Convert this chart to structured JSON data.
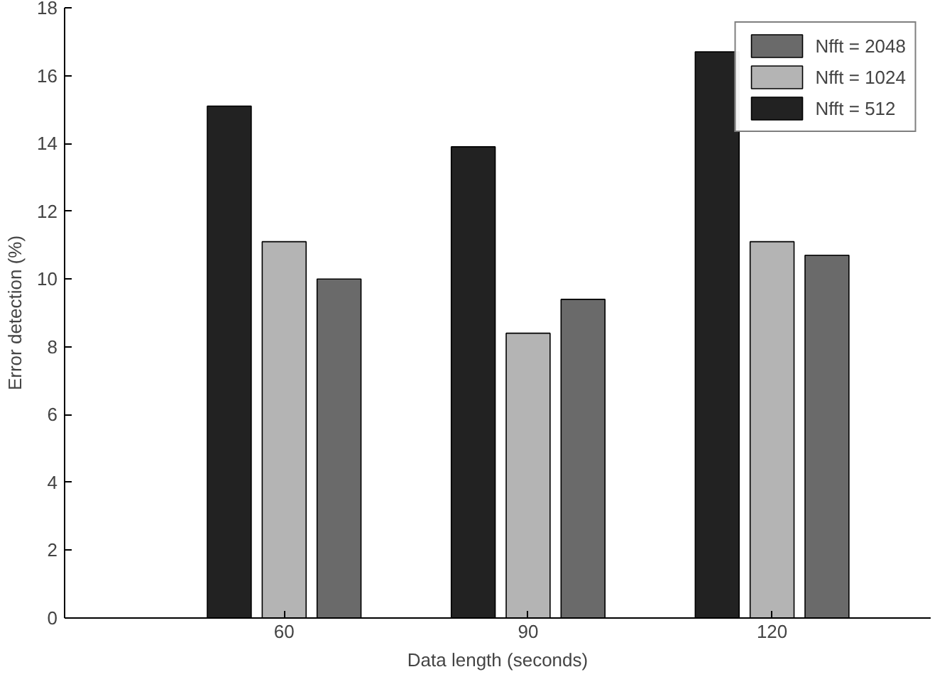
{
  "chart_data": {
    "type": "bar",
    "xlabel": "Data length (seconds)",
    "ylabel": "Error detection (%)",
    "categories": [
      "60",
      "90",
      "120"
    ],
    "series": [
      {
        "name": "Nfft = 512",
        "color": "#222222",
        "values": [
          15.1,
          13.9,
          16.7
        ]
      },
      {
        "name": "Nfft = 1024",
        "color": "#b4b4b4",
        "values": [
          11.1,
          8.4,
          11.1
        ]
      },
      {
        "name": "Nfft = 2048",
        "color": "#6a6a6a",
        "values": [
          10.0,
          9.4,
          10.7
        ]
      }
    ],
    "ylim": [
      0,
      18
    ],
    "yticks": [
      0,
      2,
      4,
      6,
      8,
      10,
      12,
      14,
      16,
      18
    ],
    "grid": false,
    "legend": "top right"
  }
}
